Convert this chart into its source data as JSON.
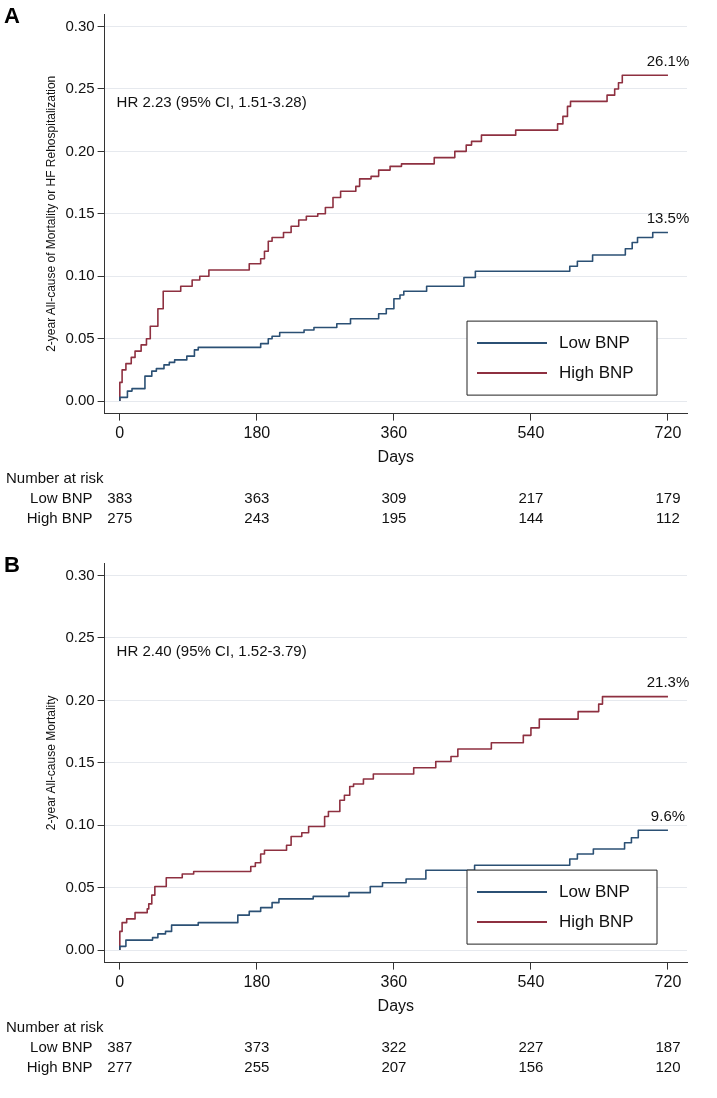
{
  "chart_data": [
    {
      "type": "step",
      "title": "A",
      "xlabel": "Days",
      "ylabel": "2-year All-cause of Mortality or HF Rehospitalization",
      "xlim": [
        -20,
        745
      ],
      "xticks": [
        0,
        180,
        360,
        540,
        720
      ],
      "ylim": [
        -0.01,
        0.31
      ],
      "yticks": [
        {
          "value": 0,
          "label": "0.00"
        },
        {
          "value": 0.05,
          "label": "0.05"
        },
        {
          "value": 0.1,
          "label": "0.10"
        },
        {
          "value": 0.15,
          "label": "0.15"
        },
        {
          "value": 0.2,
          "label": "0.20"
        },
        {
          "value": 0.25,
          "label": "0.25"
        },
        {
          "value": 0.3,
          "label": "0.30"
        }
      ],
      "grid": "y",
      "legend": "bottom right",
      "marker": "none",
      "line_style": "solid",
      "series": [
        {
          "name": "Low BNP",
          "color": "#2b5074",
          "x": [
            0,
            10,
            16,
            33,
            42,
            48,
            58,
            65,
            72,
            88,
            98,
            103,
            185,
            195,
            200,
            210,
            242,
            255,
            285,
            303,
            340,
            350,
            360,
            368,
            373,
            403,
            452,
            467,
            591,
            601,
            621,
            664,
            673,
            680,
            700,
            707,
            720
          ],
          "values": [
            0,
            0.003,
            0.008,
            0.01,
            0.02,
            0.024,
            0.026,
            0.029,
            0.031,
            0.033,
            0.036,
            0.041,
            0.043,
            0.046,
            0.05,
            0.052,
            0.055,
            0.057,
            0.059,
            0.062,
            0.066,
            0.07,
            0.074,
            0.082,
            0.085,
            0.088,
            0.092,
            0.099,
            0.104,
            0.108,
            0.112,
            0.117,
            0.122,
            0.127,
            0.131,
            0.135,
            0.135
          ]
        },
        {
          "name": "High BNP",
          "color": "#8e3040",
          "x": [
            0,
            3,
            8,
            15,
            20,
            28,
            35,
            40,
            50,
            57,
            80,
            95,
            105,
            117,
            170,
            185,
            190,
            195,
            200,
            215,
            225,
            235,
            245,
            260,
            270,
            280,
            290,
            310,
            315,
            330,
            340,
            355,
            370,
            413,
            440,
            455,
            462,
            475,
            520,
            575,
            582,
            588,
            592,
            640,
            650,
            655,
            660,
            668,
            720
          ],
          "values": [
            0,
            0.015,
            0.025,
            0.03,
            0.035,
            0.04,
            0.045,
            0.05,
            0.06,
            0.074,
            0.088,
            0.092,
            0.097,
            0.1,
            0.105,
            0.11,
            0.114,
            0.12,
            0.128,
            0.131,
            0.135,
            0.14,
            0.145,
            0.148,
            0.15,
            0.155,
            0.163,
            0.168,
            0.172,
            0.178,
            0.18,
            0.185,
            0.188,
            0.19,
            0.195,
            0.2,
            0.205,
            0.208,
            0.213,
            0.217,
            0.222,
            0.228,
            0.236,
            0.24,
            0.245,
            0.25,
            0.255,
            0.261,
            0.261
          ]
        }
      ],
      "annotations": [
        "HR 2.23 (95% CI, 1.51-3.28)",
        {
          "text": "26.1%",
          "y": 0.261
        },
        {
          "text": "13.5%",
          "y": 0.135
        },
        "Number at risk",
        "Low BNP",
        "383",
        "363",
        "309",
        "217",
        "179",
        "High BNP",
        "275",
        "243",
        "195",
        "144",
        "112"
      ]
    },
    {
      "type": "step",
      "title": "B",
      "xlabel": "Days",
      "ylabel": "2-year All-cause Mortality",
      "xlim": [
        -20,
        745
      ],
      "xticks": [
        0,
        180,
        360,
        540,
        720
      ],
      "ylim": [
        -0.01,
        0.31
      ],
      "yticks": [
        {
          "value": 0,
          "label": "0.00"
        },
        {
          "value": 0.05,
          "label": "0.05"
        },
        {
          "value": 0.1,
          "label": "0.10"
        },
        {
          "value": 0.15,
          "label": "0.15"
        },
        {
          "value": 0.2,
          "label": "0.20"
        },
        {
          "value": 0.25,
          "label": "0.25"
        },
        {
          "value": 0.3,
          "label": "0.30"
        }
      ],
      "grid": "y",
      "legend": "bottom right",
      "marker": "none",
      "line_style": "solid",
      "series": [
        {
          "name": "Low BNP",
          "color": "#2b5074",
          "x": [
            0,
            8,
            43,
            50,
            60,
            68,
            103,
            155,
            170,
            185,
            200,
            209,
            254,
            301,
            329,
            345,
            376,
            402,
            466,
            591,
            601,
            622,
            663,
            672,
            681,
            700,
            720
          ],
          "values": [
            0,
            0.003,
            0.008,
            0.01,
            0.013,
            0.015,
            0.02,
            0.022,
            0.028,
            0.031,
            0.034,
            0.038,
            0.041,
            0.043,
            0.046,
            0.051,
            0.054,
            0.057,
            0.064,
            0.068,
            0.073,
            0.077,
            0.081,
            0.086,
            0.09,
            0.096,
            0.096
          ]
        },
        {
          "name": "High BNP",
          "color": "#8e3040",
          "x": [
            0,
            3,
            9,
            20,
            36,
            38,
            42,
            46,
            61,
            82,
            97,
            172,
            178,
            185,
            190,
            219,
            225,
            239,
            248,
            269,
            274,
            289,
            295,
            302,
            307,
            320,
            333,
            386,
            415,
            435,
            444,
            488,
            530,
            540,
            551,
            602,
            629,
            634,
            647,
            720
          ],
          "values": [
            0,
            0.015,
            0.022,
            0.025,
            0.03,
            0.033,
            0.037,
            0.044,
            0.051,
            0.058,
            0.061,
            0.063,
            0.067,
            0.07,
            0.077,
            0.08,
            0.084,
            0.091,
            0.094,
            0.099,
            0.107,
            0.111,
            0.12,
            0.124,
            0.131,
            0.133,
            0.137,
            0.141,
            0.146,
            0.151,
            0.155,
            0.161,
            0.166,
            0.172,
            0.178,
            0.185,
            0.191,
            0.197,
            0.203,
            0.203
          ]
        }
      ],
      "annotations": [
        "HR 2.40 (95% CI, 1.52-3.79)",
        {
          "text": "21.3%",
          "y": 0.203
        },
        {
          "text": "9.6%",
          "y": 0.096
        },
        "Number at risk",
        "Low BNP",
        "387",
        "373",
        "322",
        "227",
        "187",
        "High BNP",
        "277",
        "255",
        "207",
        "156",
        "120"
      ]
    }
  ]
}
